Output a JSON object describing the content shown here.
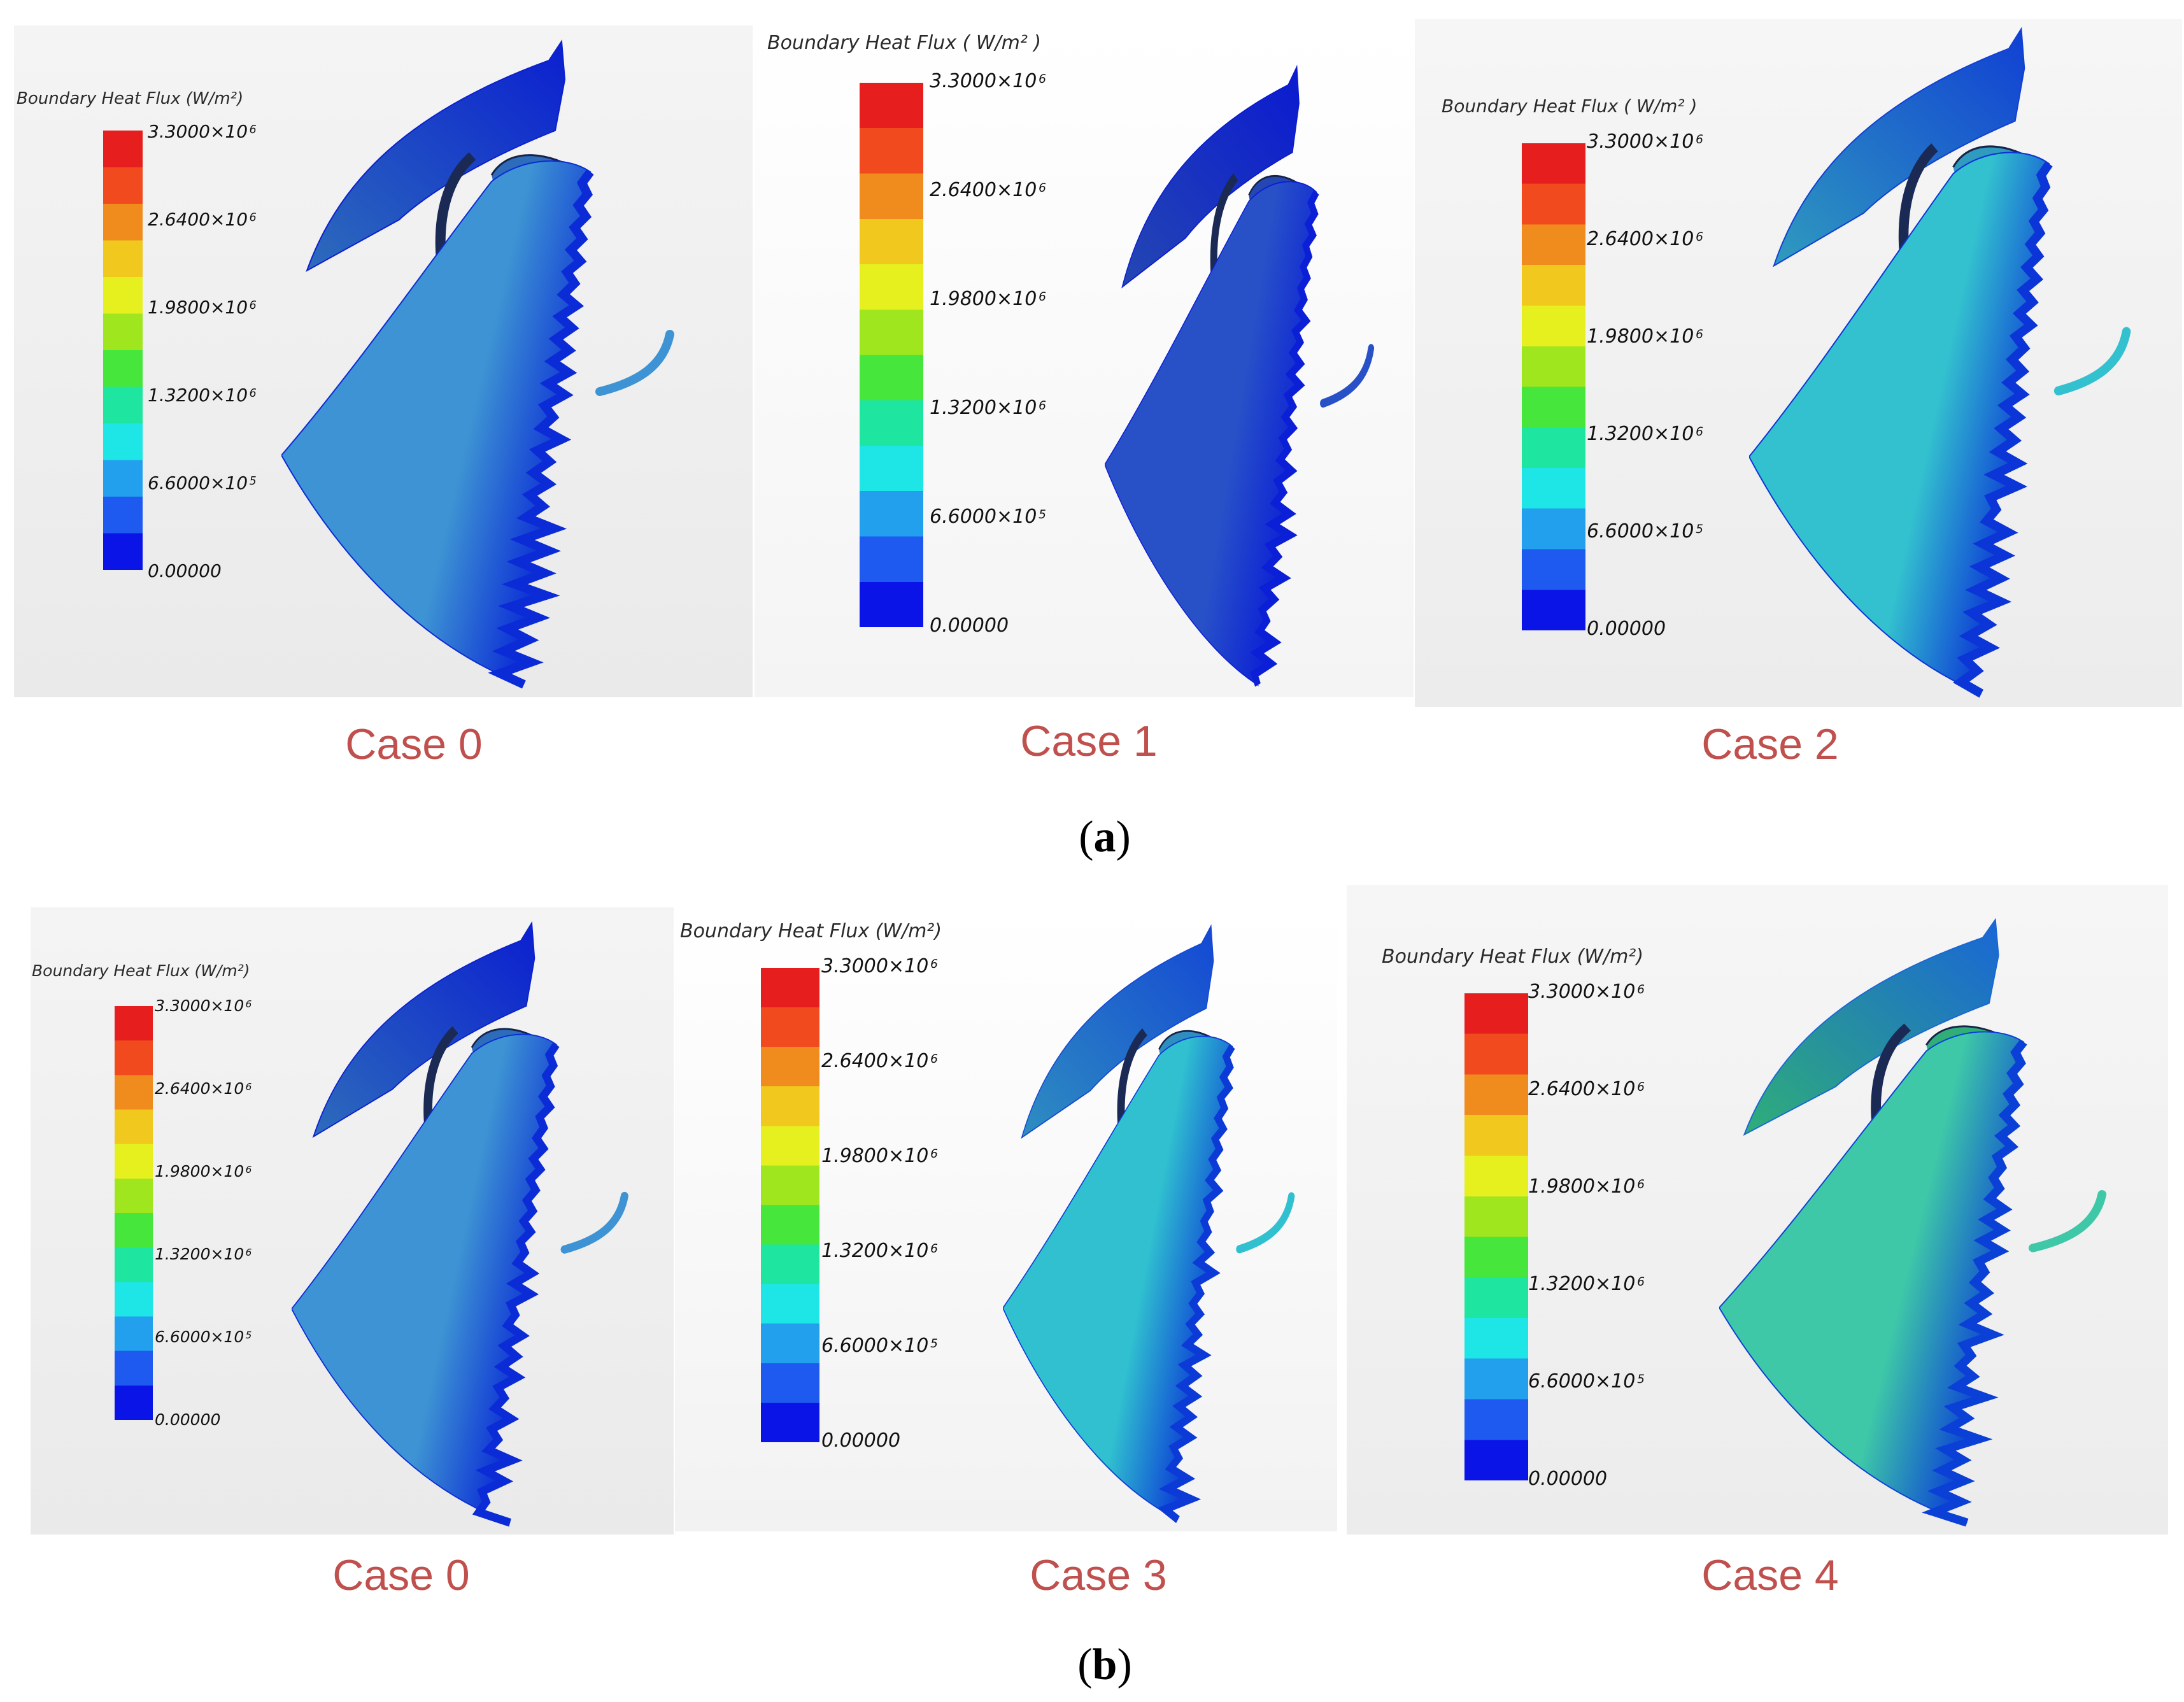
{
  "legend_title_a": "Boundary Heat Flux (W/m²)",
  "legend_title_b": "Boundary Heat Flux ( W/m² )",
  "tick_mantissas": [
    "3.3000×10",
    "2.6400×10",
    "1.9800×10",
    "1.3200×10",
    "6.6000×10",
    "0.00000"
  ],
  "tick_exponents": [
    "6",
    "6",
    "6",
    "6",
    "5",
    ""
  ],
  "colormap": [
    "#0a14e6",
    "#1e5af0",
    "#22a0ee",
    "#1ee6e6",
    "#1ee6a0",
    "#46e63c",
    "#a0e61e",
    "#e6f01e",
    "#f0c81e",
    "#f08c1e",
    "#f04a1e",
    "#e61e1e"
  ],
  "panels": [
    {
      "id": "a1",
      "case": "Case 0",
      "legend_title": "Boundary Heat Flux (W/m²)",
      "main_color": "#3d93d3",
      "top_color": "#2d6cbb",
      "edge_color": "#0b2bd6",
      "tip_color": "#0b1fd0"
    },
    {
      "id": "a2",
      "case": "Case 1",
      "legend_title": "Boundary Heat Flux ( W/m² )",
      "main_color": "#2851c8",
      "top_color": "#2447b2",
      "edge_color": "#0b1fd6",
      "tip_color": "#0b1ad0"
    },
    {
      "id": "a3",
      "case": "Case 2",
      "legend_title": "Boundary Heat Flux ( W/m² )",
      "main_color": "#33c1cf",
      "top_color": "#2f9bbe",
      "edge_color": "#0b35d6",
      "tip_color": "#1140d4"
    },
    {
      "id": "b1",
      "case": "Case 0",
      "legend_title": "Boundary Heat Flux (W/m²)",
      "main_color": "#3d93d3",
      "top_color": "#2d6cbb",
      "edge_color": "#0b2bd6",
      "tip_color": "#0b1fd0"
    },
    {
      "id": "b2",
      "case": "Case 3",
      "legend_title": "Boundary Heat Flux (W/m²)",
      "main_color": "#30c0d0",
      "top_color": "#2e8ec0",
      "edge_color": "#0b3ad6",
      "tip_color": "#1448d4"
    },
    {
      "id": "b3",
      "case": "Case 4",
      "legend_title": "Boundary Heat Flux (W/m²)",
      "main_color": "#3ec8a8",
      "top_color": "#2fae78",
      "edge_color": "#0b40d6",
      "tip_color": "#1a66d6"
    }
  ],
  "subfigures": [
    {
      "letter": "a",
      "open": "(",
      "close": ")"
    },
    {
      "letter": "b",
      "open": "(",
      "close": ")"
    }
  ]
}
